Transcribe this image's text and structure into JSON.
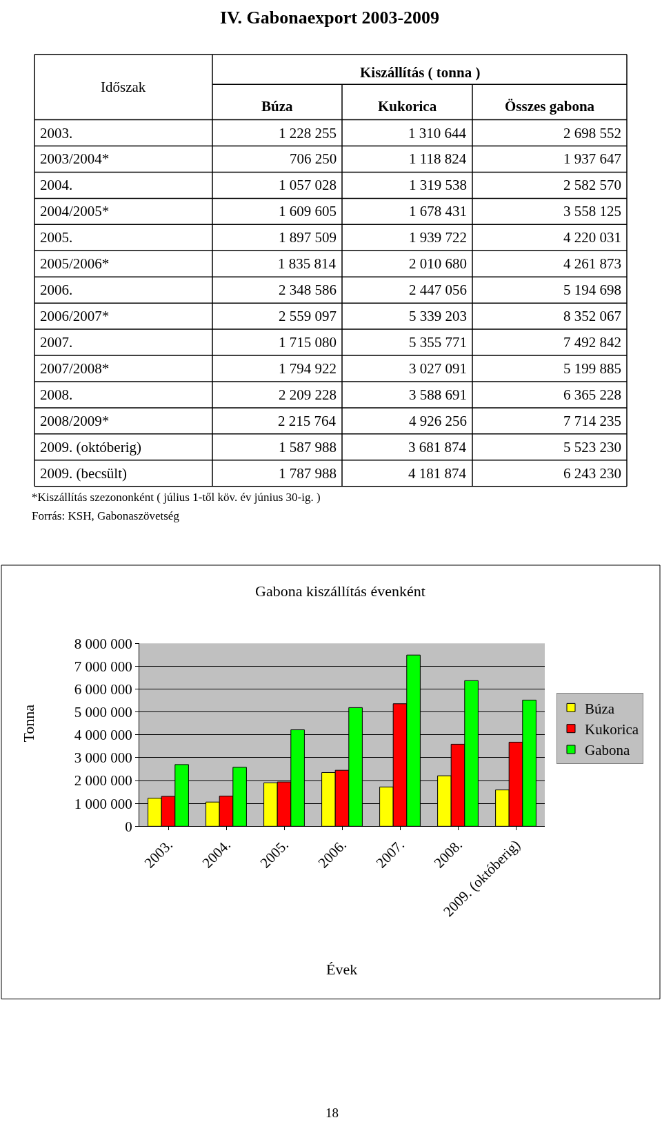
{
  "chart_data": [
    {
      "type": "heatmap",
      "title": "IV. Gabonaexport 2003-2009",
      "ylabel": "Időszak",
      "xlabel": "Kiszállítás ( tonna )",
      "data_labels": true,
      "categories": [
        "Búza",
        "Kukorica",
        "Összes gabona"
      ],
      "y_categories": [
        "2003.",
        "2003/2004*",
        "2004.",
        "2004/2005*",
        "2005.",
        "2005/2006*",
        "2006.",
        "2006/2007*",
        "2007.",
        "2007/2008*",
        "2008.",
        "2008/2009*",
        "2009. (októberig)",
        "2009. (becsült)"
      ],
      "cells": [
        [
          1228255,
          1310644,
          2698552
        ],
        [
          706250,
          1118824,
          1937647
        ],
        [
          1057028,
          1319538,
          2582570
        ],
        [
          1609605,
          1678431,
          3558125
        ],
        [
          1897509,
          1939722,
          4220031
        ],
        [
          1835814,
          2010680,
          4261873
        ],
        [
          2348586,
          2447056,
          5194698
        ],
        [
          2559097,
          5339203,
          8352067
        ],
        [
          1715080,
          5355771,
          7492842
        ],
        [
          1794922,
          3027091,
          5199885
        ],
        [
          2209228,
          3588691,
          6365228
        ],
        [
          2215764,
          4926256,
          7714235
        ],
        [
          1587988,
          3681874,
          5523230
        ],
        [
          1787988,
          4181874,
          6243230
        ]
      ],
      "annotations": [
        "*Kiszállítás szezononként ( július 1-től köv. év június 30-ig. )",
        "Forrás: KSH, Gabonaszövetség",
        "18"
      ]
    },
    {
      "type": "bar",
      "title": "Gabona kiszállítás évenként",
      "xlabel": "Évek",
      "ylabel": "Tonna",
      "categories": [
        "2003.",
        "2004.",
        "2005.",
        "2006.",
        "2007.",
        "2008.",
        "2009. (októberig)"
      ],
      "series": [
        {
          "name": "Búza",
          "color": "#ffff00",
          "values": [
            1230000,
            1060000,
            1900000,
            2350000,
            1720000,
            2210000,
            1590000
          ]
        },
        {
          "name": "Kukorica",
          "color": "#ff0000",
          "values": [
            1310000,
            1320000,
            1940000,
            2450000,
            5360000,
            3590000,
            3680000
          ]
        },
        {
          "name": "Gabona",
          "color": "#00ff00",
          "values": [
            2700000,
            2580000,
            4220000,
            5190000,
            7490000,
            6370000,
            5520000
          ]
        }
      ],
      "ylim": [
        0,
        8000000
      ],
      "yticks": [
        0,
        {
          "value": 1000000,
          "label": "1 000 000"
        },
        {
          "value": 2000000,
          "label": "2 000 000"
        },
        {
          "value": 3000000,
          "label": "3 000 000"
        },
        {
          "value": 4000000,
          "label": "4 000 000"
        },
        {
          "value": 5000000,
          "label": "5 000 000"
        },
        {
          "value": 6000000,
          "label": "6 000 000"
        },
        {
          "value": 7000000,
          "label": "7 000 000"
        },
        {
          "value": 8000000,
          "label": "8 000 000"
        }
      ],
      "grid": "y",
      "legend": "right"
    }
  ]
}
